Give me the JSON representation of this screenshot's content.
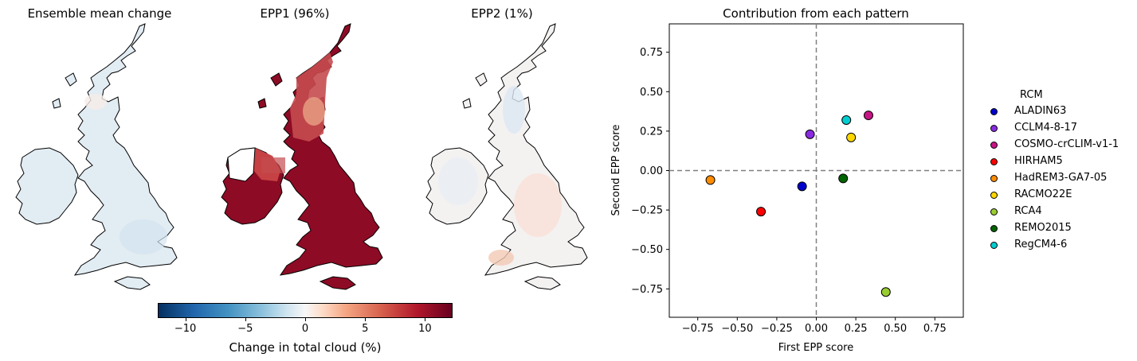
{
  "maps": {
    "titles": [
      "Ensemble mean change",
      "EPP1 (96%)",
      "EPP2 (1%)"
    ],
    "colorbar": {
      "label": "Change in total cloud (%)",
      "ticks": [
        "−10",
        "−5",
        "0",
        "5",
        "10"
      ],
      "tick_values": [
        -10,
        -5,
        0,
        5,
        10
      ],
      "range": [
        -12.3,
        12.3
      ],
      "cmap": "RdBu_r"
    },
    "fill_colors": {
      "ensemble_mean": "#e2ecf3",
      "epp1": "#8e0b25",
      "epp1_north": "#c54b4f",
      "epp2": "#f4f1f1"
    }
  },
  "chart_data": {
    "type": "scatter",
    "title": "Contribution from each pattern",
    "xlabel": "First EPP score",
    "ylabel": "Second EPP score",
    "xlim": [
      -0.93,
      0.93
    ],
    "ylim": [
      -0.93,
      0.93
    ],
    "xticks": [
      -0.75,
      -0.5,
      -0.25,
      0.0,
      0.25,
      0.5,
      0.75
    ],
    "yticks": [
      -0.75,
      -0.5,
      -0.25,
      0.0,
      0.25,
      0.5,
      0.75
    ],
    "xtick_labels": [
      "−0.75",
      "−0.50",
      "−0.25",
      "0.00",
      "0.25",
      "0.50",
      "0.75"
    ],
    "ytick_labels": [
      "−0.75",
      "−0.50",
      "−0.25",
      "0.00",
      "0.25",
      "0.50",
      "0.75"
    ],
    "reference_lines": {
      "x": 0.0,
      "y": 0.0,
      "style": "dashed",
      "color": "#808080"
    },
    "legend": {
      "title": "RCM",
      "placement": "right, outside"
    },
    "series": [
      {
        "name": "ALADIN63",
        "x": -0.09,
        "y": -0.1,
        "color": "#0000cd"
      },
      {
        "name": "CCLM4-8-17",
        "x": -0.04,
        "y": 0.23,
        "color": "#8a2be2"
      },
      {
        "name": "COSMO-crCLIM-v1-1",
        "x": 0.33,
        "y": 0.35,
        "color": "#c71585"
      },
      {
        "name": "HIRHAM5",
        "x": -0.35,
        "y": -0.26,
        "color": "#ff0000"
      },
      {
        "name": "HadREM3-GA7-05",
        "x": -0.67,
        "y": -0.06,
        "color": "#ff8c00"
      },
      {
        "name": "RACMO22E",
        "x": 0.22,
        "y": 0.21,
        "color": "#ffd700"
      },
      {
        "name": "RCA4",
        "x": 0.44,
        "y": -0.77,
        "color": "#9acd32"
      },
      {
        "name": "REMO2015",
        "x": 0.17,
        "y": -0.05,
        "color": "#006400"
      },
      {
        "name": "RegCM4-6",
        "x": 0.19,
        "y": 0.32,
        "color": "#00ced1"
      }
    ]
  }
}
